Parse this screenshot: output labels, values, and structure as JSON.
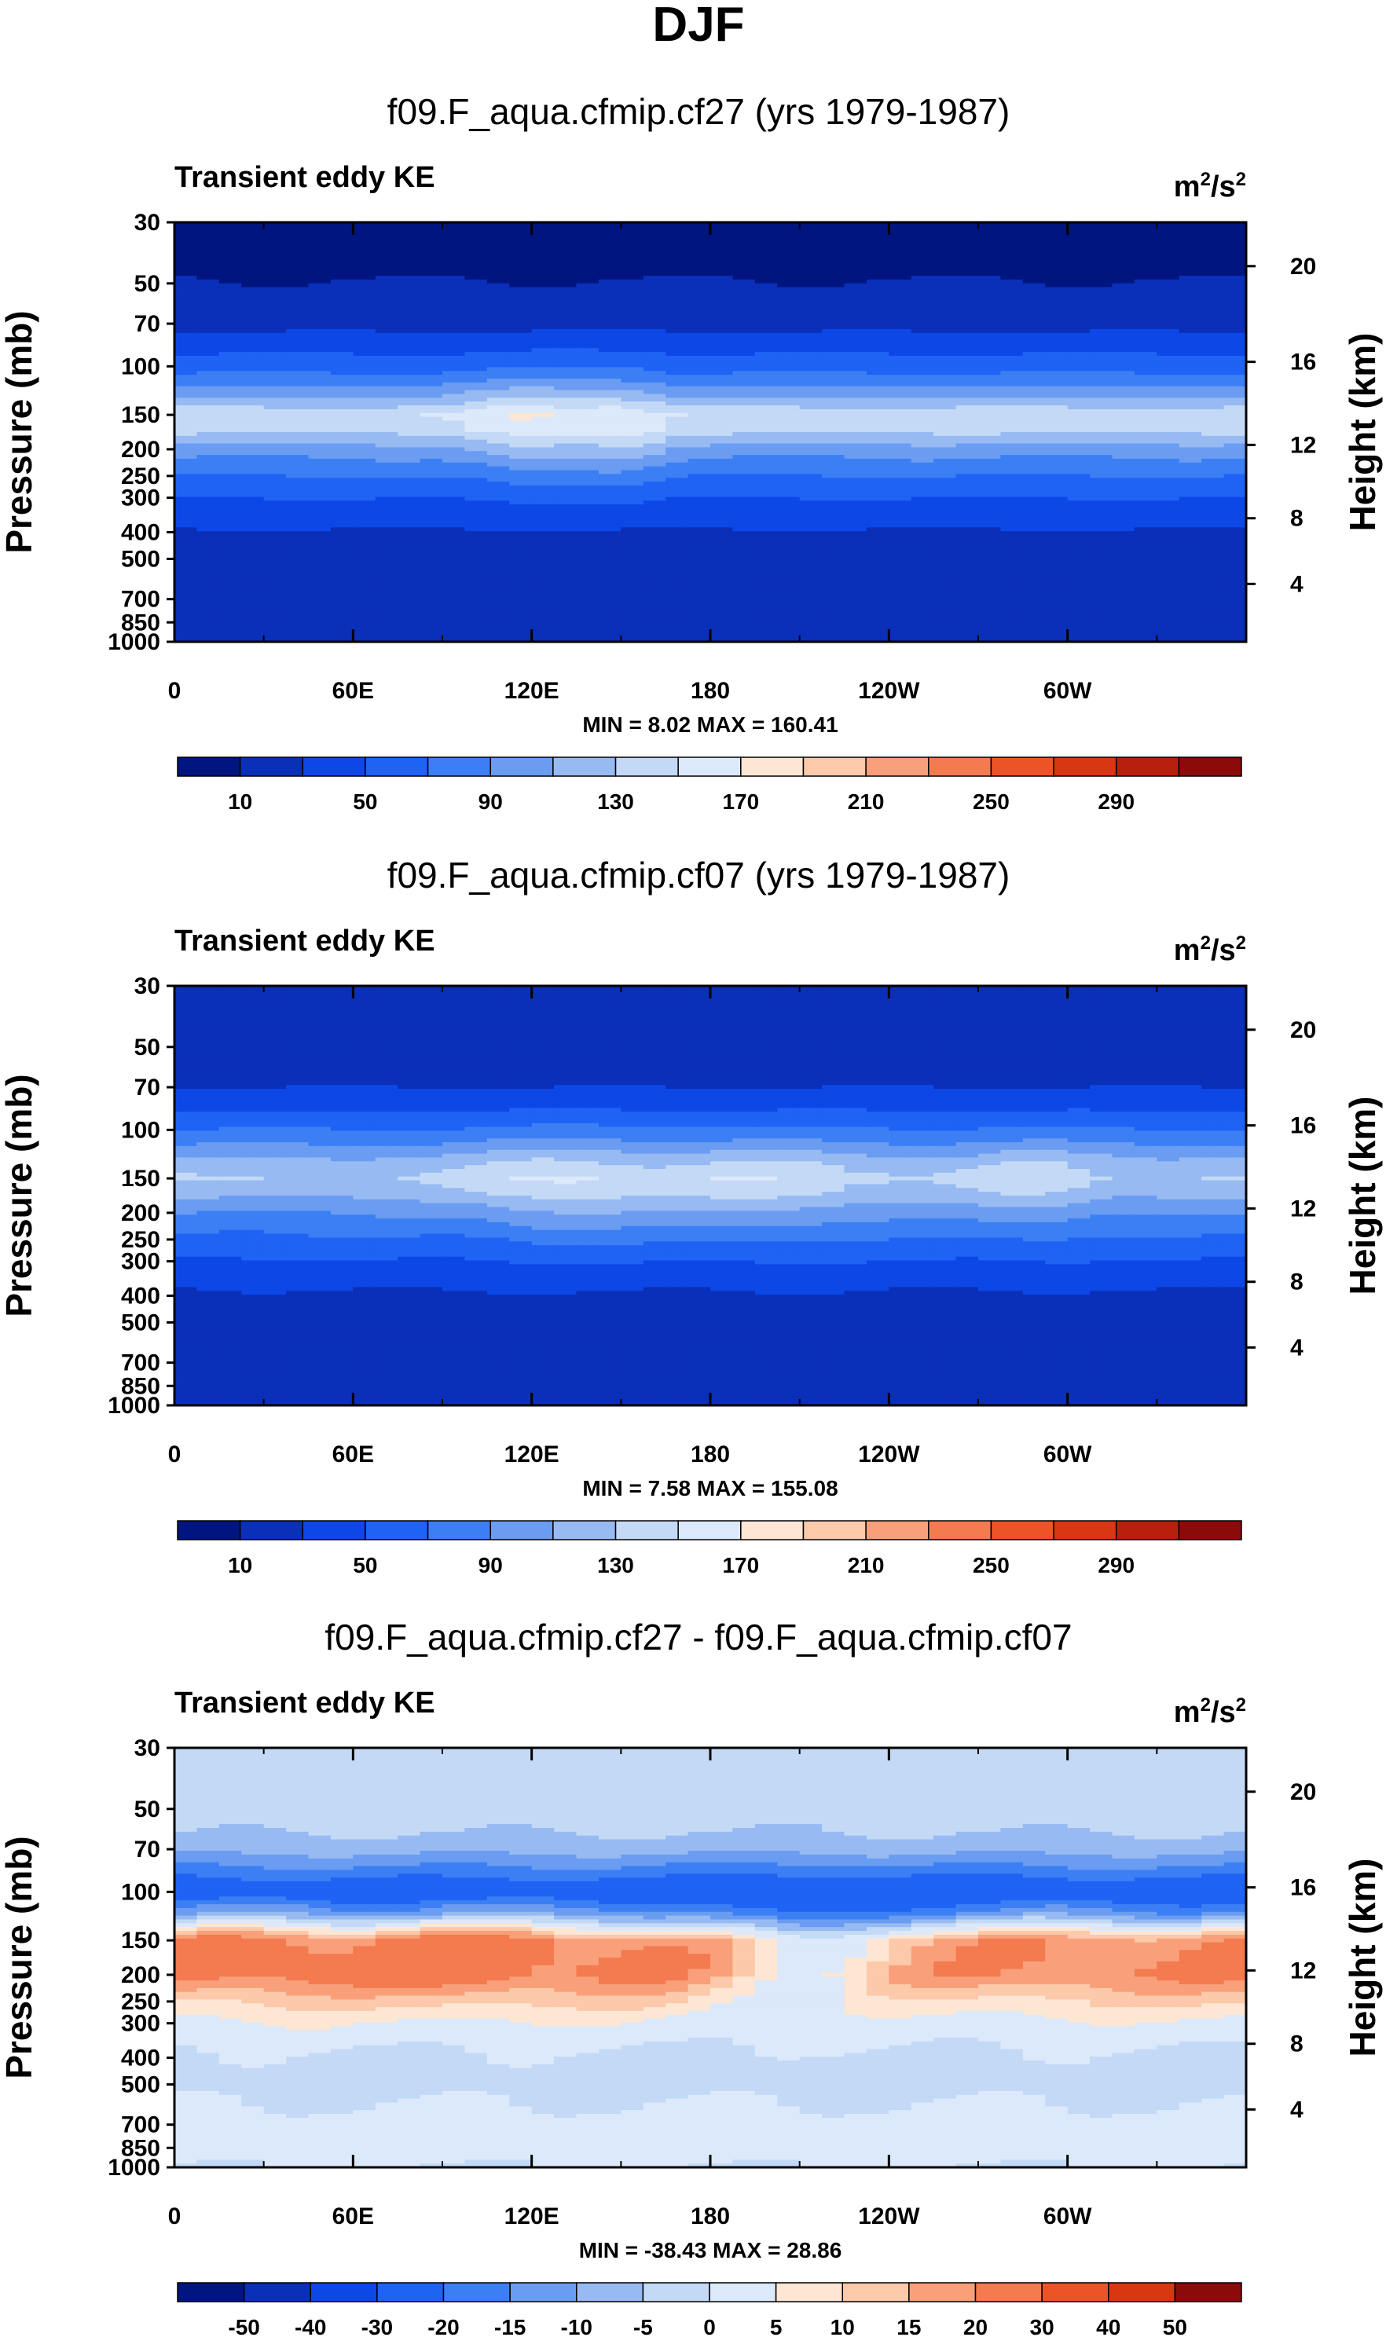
{
  "figure": {
    "title": "DJF"
  },
  "chart_data": [
    {
      "type": "heatmap",
      "title": "f09.F_aqua.cfmip.cf27 (yrs 1979-1987)",
      "field_label": "Transient eddy KE",
      "units_base": "m",
      "units_exp1": "2",
      "units_mid": "/s",
      "units_exp2": "2",
      "ylabel": "Pressure (mb)",
      "ylabel_right": "Height (km)",
      "x_ticks": [
        "0",
        "60E",
        "120E",
        "180",
        "120W",
        "60W"
      ],
      "y_ticks": [
        "30",
        "50",
        "70",
        "100",
        "150",
        "200",
        "250",
        "300",
        "400",
        "500",
        "700",
        "850",
        "1000"
      ],
      "y_right_ticks": [
        "20",
        "16",
        "12",
        "8",
        "4"
      ],
      "minmax": "MIN =   8.02  MAX = 160.41",
      "min": 8.02,
      "max": 160.41,
      "colorbar_labels": [
        "10",
        "50",
        "90",
        "130",
        "170",
        "210",
        "250",
        "290"
      ],
      "colorbar_colors": [
        "#00157f",
        "#0a2fb8",
        "#0d47e6",
        "#1f63f5",
        "#3c7ff5",
        "#6a9cf2",
        "#97baf2",
        "#c3d9f6",
        "#dce9fa",
        "#fde6d3",
        "#fcc9aa",
        "#f9a07a",
        "#f47a4f",
        "#ec5428",
        "#d93612",
        "#b81f0c",
        "#8b0a0a"
      ],
      "field_profile": [
        {
          "p": 30,
          "v": 6
        },
        {
          "p": 45,
          "v": 8
        },
        {
          "p": 60,
          "v": 15
        },
        {
          "p": 75,
          "v": 30
        },
        {
          "p": 90,
          "v": 50
        },
        {
          "p": 110,
          "v": 75
        },
        {
          "p": 130,
          "v": 110
        },
        {
          "p": 150,
          "v": 145
        },
        {
          "p": 170,
          "v": 135
        },
        {
          "p": 200,
          "v": 100
        },
        {
          "p": 250,
          "v": 70
        },
        {
          "p": 300,
          "v": 50
        },
        {
          "p": 360,
          "v": 35
        },
        {
          "p": 420,
          "v": 25
        },
        {
          "p": 500,
          "v": 22
        },
        {
          "p": 700,
          "v": 20
        },
        {
          "p": 1000,
          "v": 18
        }
      ],
      "field_zonal_peaks": [
        [
          120,
          15,
          30
        ],
        [
          150,
          10,
          25
        ]
      ]
    },
    {
      "type": "heatmap",
      "title": "f09.F_aqua.cfmip.cf07 (yrs 1979-1987)",
      "field_label": "Transient eddy KE",
      "units_base": "m",
      "units_exp1": "2",
      "units_mid": "/s",
      "units_exp2": "2",
      "ylabel": "Pressure (mb)",
      "ylabel_right": "Height (km)",
      "x_ticks": [
        "0",
        "60E",
        "120E",
        "180",
        "120W",
        "60W"
      ],
      "y_ticks": [
        "30",
        "50",
        "70",
        "100",
        "150",
        "200",
        "250",
        "300",
        "400",
        "500",
        "700",
        "850",
        "1000"
      ],
      "y_right_ticks": [
        "20",
        "16",
        "12",
        "8",
        "4"
      ],
      "minmax": "MIN =   7.58  MAX = 155.08",
      "min": 7.58,
      "max": 155.08,
      "colorbar_labels": [
        "10",
        "50",
        "90",
        "130",
        "170",
        "210",
        "250",
        "290"
      ],
      "colorbar_colors": [
        "#00157f",
        "#0a2fb8",
        "#0d47e6",
        "#1f63f5",
        "#3c7ff5",
        "#6a9cf2",
        "#97baf2",
        "#c3d9f6",
        "#dce9fa",
        "#fde6d3",
        "#fcc9aa",
        "#f9a07a",
        "#f47a4f",
        "#ec5428",
        "#d93612",
        "#b81f0c",
        "#8b0a0a"
      ],
      "field_profile": [
        {
          "p": 30,
          "v": 12
        },
        {
          "p": 60,
          "v": 18
        },
        {
          "p": 75,
          "v": 35
        },
        {
          "p": 90,
          "v": 55
        },
        {
          "p": 110,
          "v": 85
        },
        {
          "p": 130,
          "v": 115
        },
        {
          "p": 150,
          "v": 130
        },
        {
          "p": 170,
          "v": 115
        },
        {
          "p": 200,
          "v": 90
        },
        {
          "p": 250,
          "v": 65
        },
        {
          "p": 300,
          "v": 48
        },
        {
          "p": 360,
          "v": 33
        },
        {
          "p": 430,
          "v": 24
        },
        {
          "p": 500,
          "v": 21
        },
        {
          "p": 700,
          "v": 19
        },
        {
          "p": 1000,
          "v": 17
        }
      ],
      "field_zonal_peaks": [
        [
          130,
          20,
          28
        ],
        [
          200,
          25,
          22
        ],
        [
          290,
          15,
          18
        ]
      ]
    },
    {
      "type": "heatmap",
      "title": "f09.F_aqua.cfmip.cf27 - f09.F_aqua.cfmip.cf07",
      "field_label": "Transient eddy KE",
      "units_base": "m",
      "units_exp1": "2",
      "units_mid": "/s",
      "units_exp2": "2",
      "ylabel": "Pressure (mb)",
      "ylabel_right": "Height (km)",
      "x_ticks": [
        "0",
        "60E",
        "120E",
        "180",
        "120W",
        "60W"
      ],
      "y_ticks": [
        "30",
        "50",
        "70",
        "100",
        "150",
        "200",
        "250",
        "300",
        "400",
        "500",
        "700",
        "850",
        "1000"
      ],
      "y_right_ticks": [
        "20",
        "16",
        "12",
        "8",
        "4"
      ],
      "minmax": "MIN = -38.43  MAX = 28.86",
      "min": -38.43,
      "max": 28.86,
      "colorbar_labels": [
        "-50",
        "-40",
        "-30",
        "-20",
        "-15",
        "-10",
        "-5",
        "0",
        "5",
        "10",
        "15",
        "20",
        "30",
        "40",
        "50"
      ],
      "colorbar_colors": [
        "#00157f",
        "#0a2fb8",
        "#0d47e6",
        "#1f63f5",
        "#3c7ff5",
        "#6a9cf2",
        "#97baf2",
        "#c3d9f6",
        "#dce9fa",
        "#fde6d3",
        "#fcc9aa",
        "#f9a07a",
        "#f47a4f",
        "#ec5428",
        "#d93612",
        "#8b0a0a"
      ],
      "field_profile": [
        {
          "p": 30,
          "v": -2
        },
        {
          "p": 55,
          "v": -3
        },
        {
          "p": 70,
          "v": -8
        },
        {
          "p": 85,
          "v": -18
        },
        {
          "p": 100,
          "v": -28
        },
        {
          "p": 120,
          "v": -15
        },
        {
          "p": 150,
          "v": 14
        },
        {
          "p": 200,
          "v": 16
        },
        {
          "p": 250,
          "v": 8
        },
        {
          "p": 300,
          "v": 3
        },
        {
          "p": 400,
          "v": -1
        },
        {
          "p": 500,
          "v": -2
        },
        {
          "p": 700,
          "v": 2
        },
        {
          "p": 850,
          "v": 3
        },
        {
          "p": 1000,
          "v": 0
        }
      ],
      "field_zonal_peaks": [
        [
          30,
          30,
          10
        ],
        [
          100,
          20,
          10
        ],
        [
          150,
          25,
          6
        ],
        [
          300,
          25,
          6
        ],
        [
          210,
          18,
          -12
        ]
      ]
    }
  ]
}
